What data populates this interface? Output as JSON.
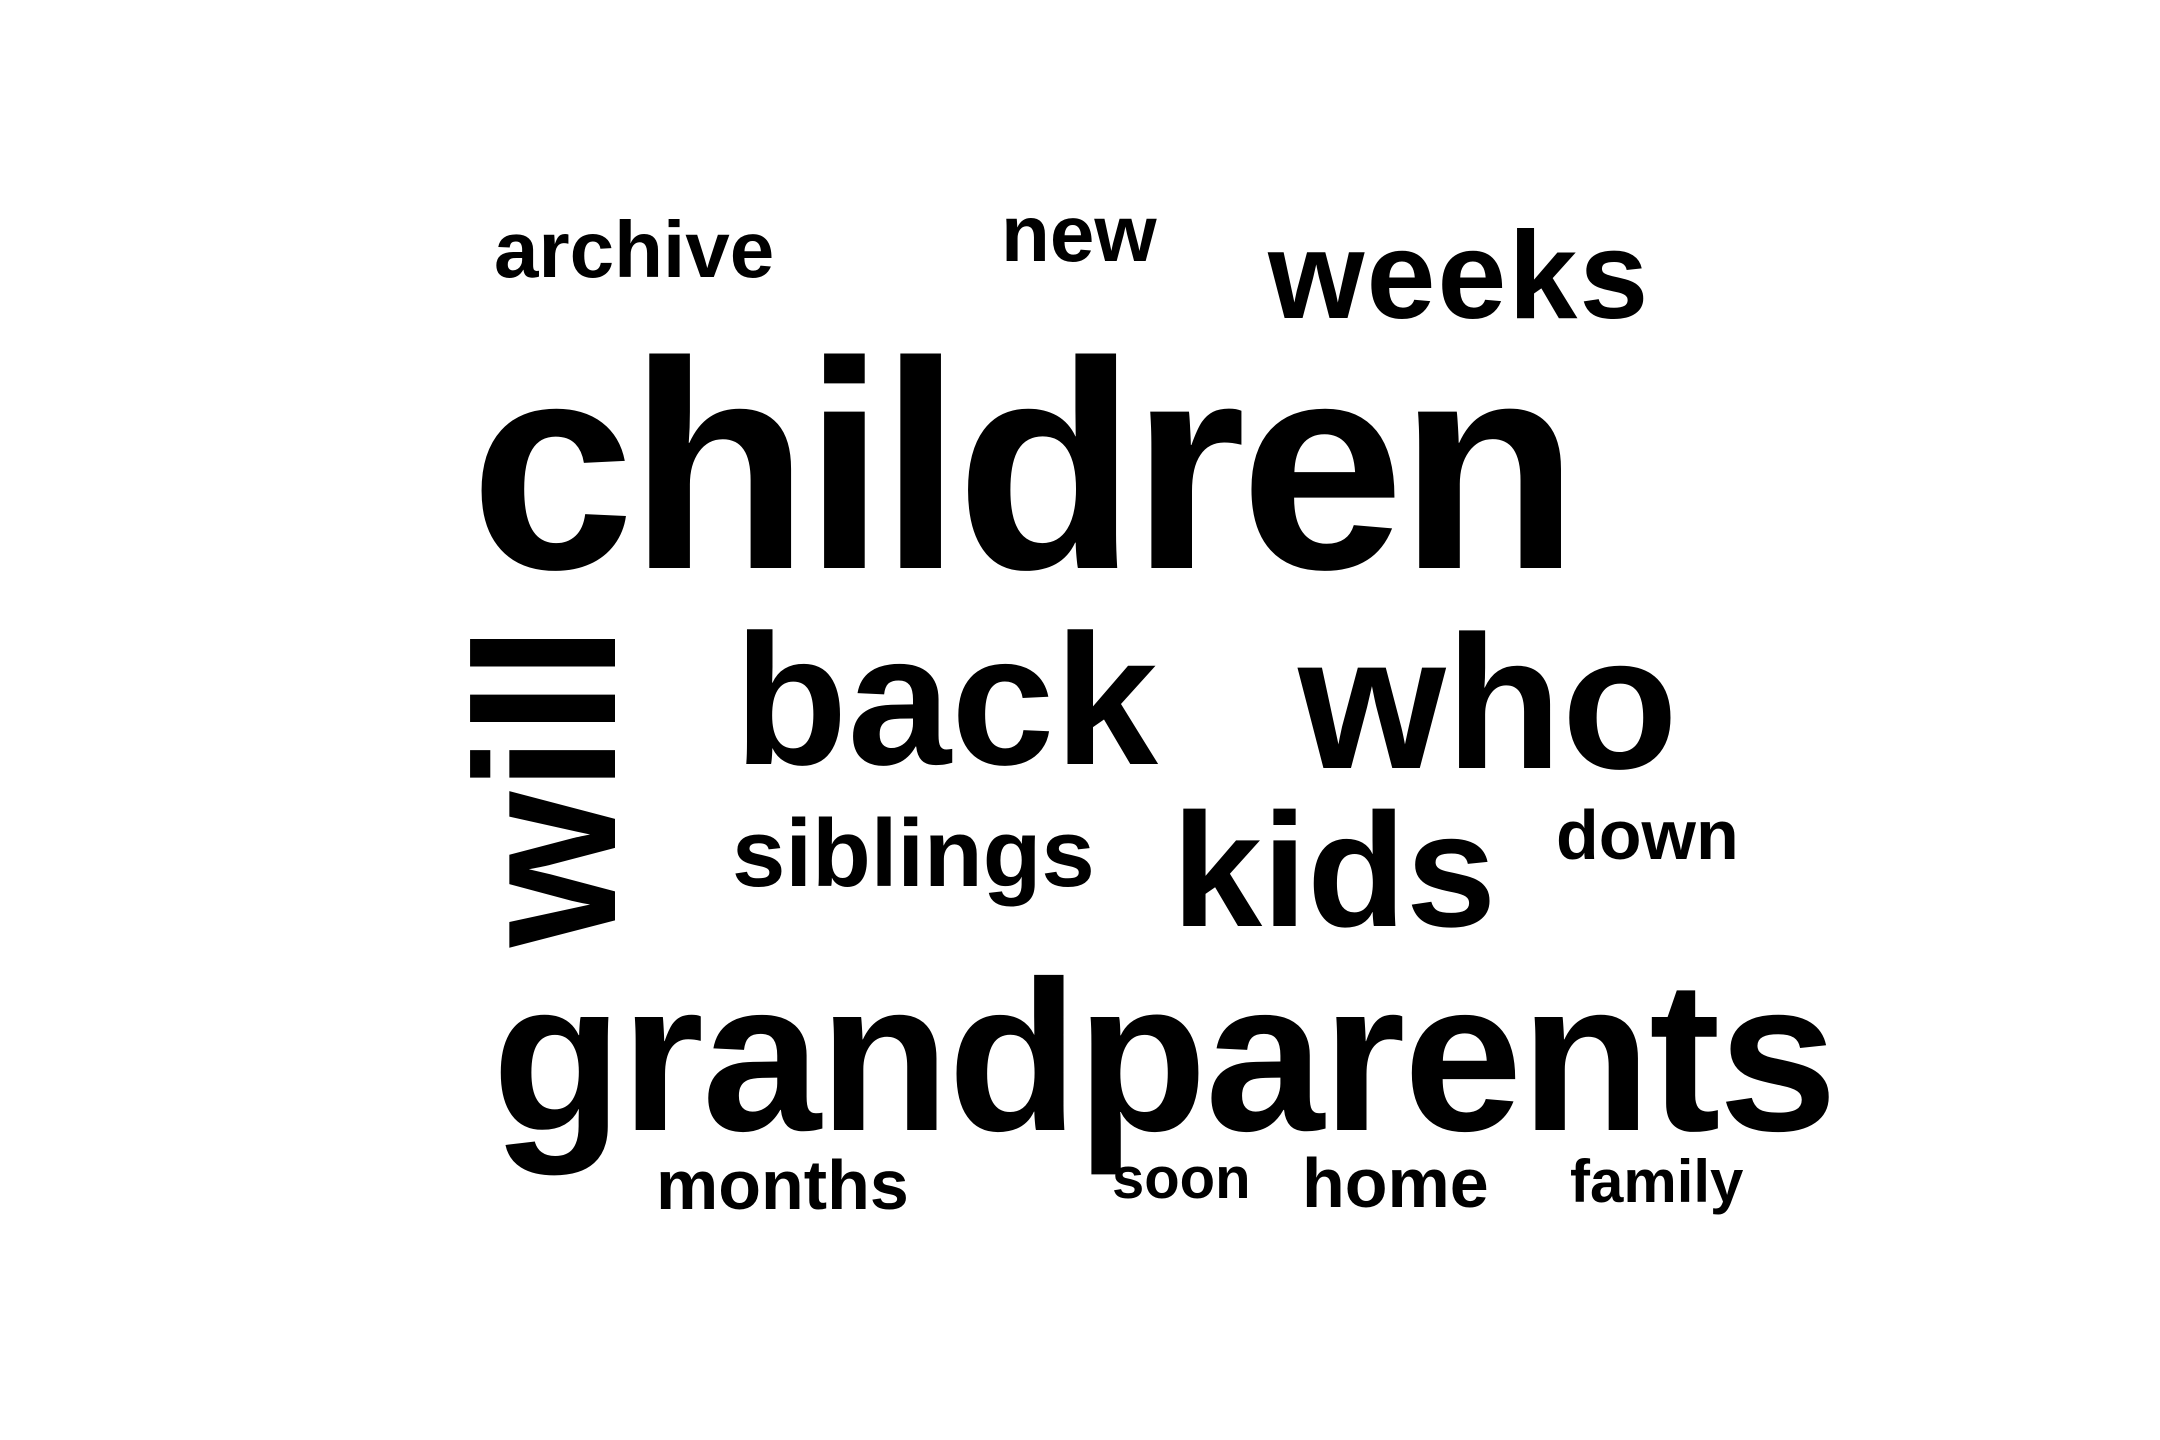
{
  "word_cloud": {
    "text_color": "#000000",
    "background_color": "#ffffff",
    "words": {
      "archive": "archive",
      "new": "new",
      "weeks": "weeks",
      "children": "children",
      "will": "will",
      "back": "back",
      "who": "who",
      "siblings": "siblings",
      "kids": "kids",
      "down": "down",
      "grandparents": "grandparents",
      "months": "months",
      "soon": "soon",
      "home": "home",
      "family": "family"
    }
  }
}
